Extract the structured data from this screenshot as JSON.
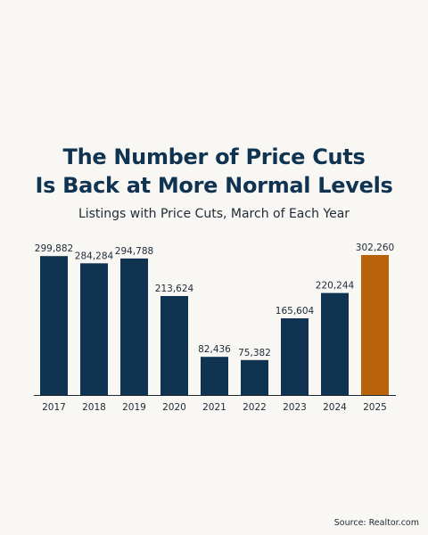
{
  "title": {
    "line1": "The Number of Price Cuts",
    "line2": "Is Back at More Normal Levels"
  },
  "subtitle": "Listings with Price Cuts, March of Each Year",
  "source": "Source: Realtor.com",
  "colors": {
    "background": "#f8f7f4",
    "bar_default": "#0f3350",
    "bar_highlight": "#b8620c",
    "text": "#1d2a36",
    "axis": "#1d2a36"
  },
  "chart_data": {
    "type": "bar",
    "categories": [
      "2017",
      "2018",
      "2019",
      "2020",
      "2021",
      "2022",
      "2023",
      "2024",
      "2025"
    ],
    "values": [
      299882,
      284284,
      294788,
      213624,
      82436,
      75382,
      165604,
      220244,
      302260
    ],
    "value_labels": [
      "299,882",
      "284,284",
      "294,788",
      "213,624",
      "82,436",
      "75,382",
      "165,604",
      "220,244",
      "302,260"
    ],
    "highlight_index": 8,
    "title": "The Number of Price Cuts Is Back at More Normal Levels",
    "subtitle": "Listings with Price Cuts, March of Each Year",
    "xlabel": "",
    "ylabel": "",
    "ylim": [
      0,
      302260
    ],
    "grid": false,
    "legend": "none"
  }
}
